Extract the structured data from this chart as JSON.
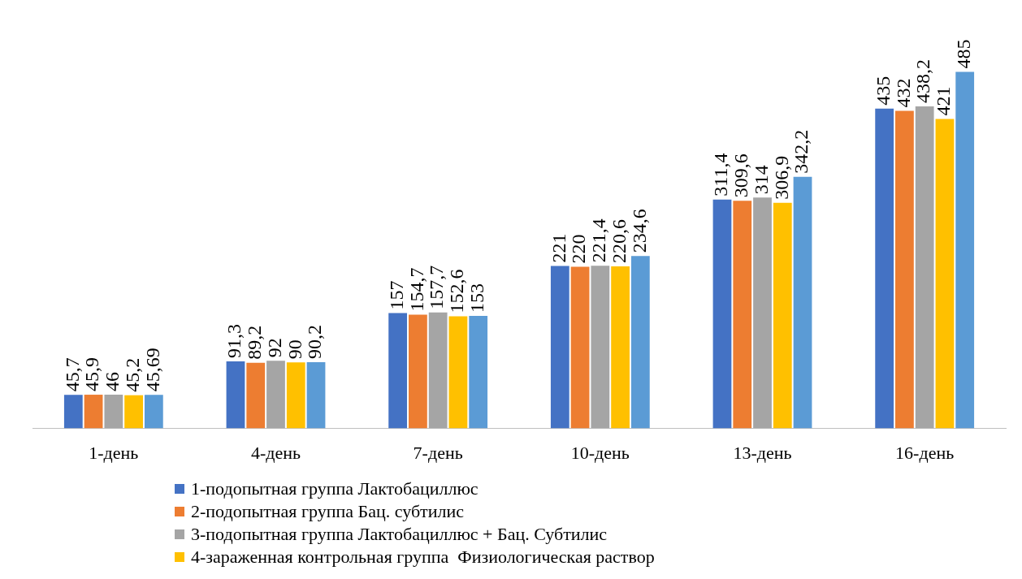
{
  "chart_data": {
    "type": "bar",
    "categories": [
      "1-день",
      "4-день",
      "7-день",
      "10-день",
      "13-день",
      "16-день"
    ],
    "series": [
      {
        "name": "1-подопытная группа Лактобациллюс",
        "color": "#4472c4",
        "values": [
          45.7,
          91.3,
          157,
          221,
          311.4,
          435
        ],
        "value_labels": [
          "45,7",
          "91,3",
          "157",
          "221",
          "311,4",
          "435"
        ]
      },
      {
        "name": "2-подопытная группа Бац. субтилис",
        "color": "#ed7d31",
        "values": [
          45.9,
          89.2,
          154.7,
          220,
          309.6,
          432
        ],
        "value_labels": [
          "45,9",
          "89,2",
          "154,7",
          "220",
          "309,6",
          "432"
        ]
      },
      {
        "name": "3-подопытная группа Лактобациллюс + Бац. Субтилис",
        "color": "#a5a5a5",
        "values": [
          46,
          92,
          157.7,
          221.4,
          314,
          438.2
        ],
        "value_labels": [
          "46",
          "92",
          "157,7",
          "221,4",
          "314",
          "438,2"
        ]
      },
      {
        "name": "4-зараженная контрольная группа  Физиологическая раствор",
        "color": "#ffc000",
        "values": [
          45.2,
          90,
          152.6,
          220.6,
          306.9,
          421
        ],
        "value_labels": [
          "45,2",
          "90",
          "152,6",
          "220,6",
          "306,9",
          "421"
        ]
      },
      {
        "color": "#5b9bd5",
        "values": [
          45.69,
          90.2,
          153,
          234.6,
          342.2,
          485
        ],
        "value_labels": [
          "45,69",
          "90,2",
          "153",
          "234,6",
          "342,2",
          "485"
        ]
      }
    ],
    "legend": "bottom"
  }
}
